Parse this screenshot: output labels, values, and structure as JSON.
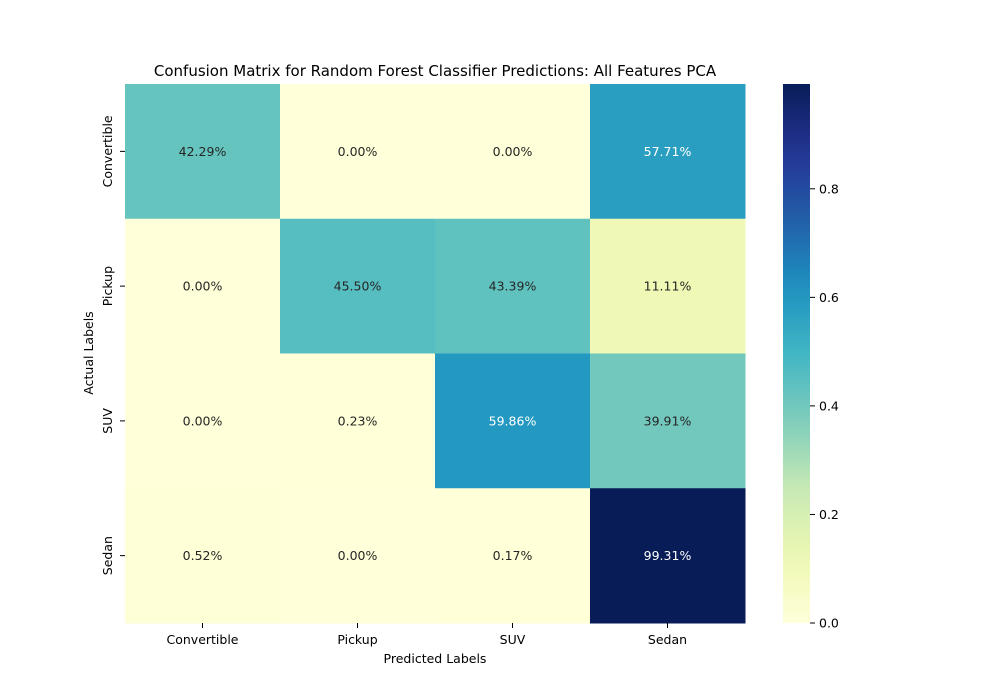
{
  "chart_data": {
    "type": "heatmap",
    "title": "Confusion Matrix for Random Forest Classifier Predictions: All Features PCA",
    "xlabel": "Predicted Labels",
    "ylabel": "Actual Labels",
    "x_categories": [
      "Convertible",
      "Pickup",
      "SUV",
      "Sedan"
    ],
    "y_categories": [
      "Convertible",
      "Pickup",
      "SUV",
      "Sedan"
    ],
    "values": [
      [
        0.4229,
        0.0,
        0.0,
        0.5771
      ],
      [
        0.0,
        0.455,
        0.4339,
        0.1111
      ],
      [
        0.0,
        0.0023,
        0.5986,
        0.3991
      ],
      [
        0.0052,
        0.0,
        0.0017,
        0.9931
      ]
    ],
    "cell_labels": [
      [
        "42.29%",
        "0.00%",
        "0.00%",
        "57.71%"
      ],
      [
        "0.00%",
        "45.50%",
        "43.39%",
        "11.11%"
      ],
      [
        "0.00%",
        "0.23%",
        "59.86%",
        "39.91%"
      ],
      [
        "0.52%",
        "0.00%",
        "0.17%",
        "99.31%"
      ]
    ],
    "colormap": "YlGnBu",
    "colorbar": {
      "range": [
        0.0,
        0.9931
      ],
      "ticks": [
        0.0,
        0.2,
        0.4,
        0.6,
        0.8
      ],
      "tick_labels": [
        "0.0",
        "0.2",
        "0.4",
        "0.6",
        "0.8"
      ]
    }
  }
}
